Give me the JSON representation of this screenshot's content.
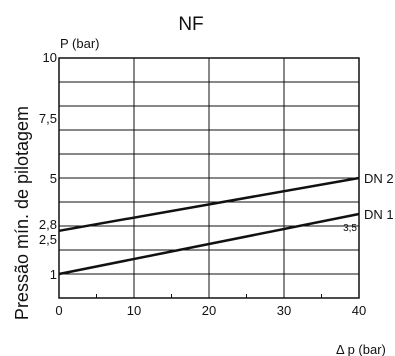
{
  "chart_data": {
    "type": "line",
    "title": "NF",
    "ylabel": "Pressão mín. de pilotagem",
    "yunit": "P (bar)",
    "xlabel": "Δ p (bar)",
    "xlim": [
      0,
      40
    ],
    "ylim": [
      0,
      10
    ],
    "xticks": [
      0,
      10,
      20,
      30,
      40
    ],
    "yticks": [
      {
        "value": 1,
        "label": "1"
      },
      {
        "value": 2.5,
        "label": "2,5"
      },
      {
        "value": 2.8,
        "label": "2,8"
      },
      {
        "value": 5,
        "label": "5"
      },
      {
        "value": 7.5,
        "label": "7,5"
      },
      {
        "value": 10,
        "label": "10"
      }
    ],
    "grid": true,
    "series": [
      {
        "name": "DN 2",
        "x": [
          0,
          40
        ],
        "y": [
          2.8,
          5
        ],
        "color": "#111111"
      },
      {
        "name": "DN 1",
        "x": [
          0,
          40
        ],
        "y": [
          1,
          3.5
        ],
        "color": "#111111"
      }
    ],
    "annotations": [
      {
        "text": "3,5",
        "x": 40,
        "y": 3.5
      }
    ]
  }
}
